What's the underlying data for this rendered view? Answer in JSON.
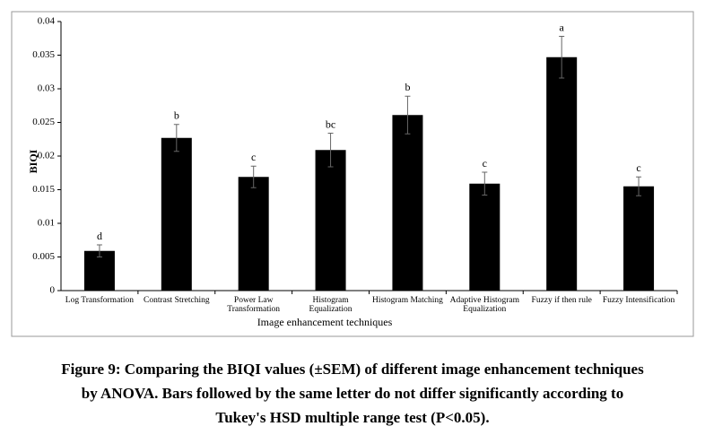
{
  "chart_data": {
    "type": "bar",
    "y_label": "BIQI",
    "x_label": "Image enhancement techniques",
    "categories": [
      "Log Transformation",
      "Contrast Stretching",
      "Power Law Transformation",
      "Histogram Equalization",
      "Histogram Matching",
      "Adaptive Histogram Equalization",
      "Fuzzy if then rule",
      "Fuzzy Intensification"
    ],
    "series": [
      {
        "color": "#000000",
        "values": [
          0.0059,
          0.0227,
          0.0169,
          0.0209,
          0.0261,
          0.0159,
          0.0347,
          0.0155
        ],
        "errors": [
          0.0009,
          0.002,
          0.0016,
          0.0025,
          0.0028,
          0.0017,
          0.0031,
          0.0014
        ],
        "letters": [
          "d",
          "b",
          "c",
          "bc",
          "b",
          "c",
          "a",
          "c"
        ]
      }
    ],
    "ylim": [
      0,
      0.04
    ],
    "yticks": [
      0,
      0.005,
      0.01,
      0.015,
      0.02,
      0.025,
      0.03,
      0.035,
      0.04
    ],
    "grid": false,
    "caption": [
      "Figure 9: Comparing the BIQI values (±SEM) of different image enhancement techniques",
      "by ANOVA. Bars followed by the same letter do not differ significantly according to",
      "Tukey's HSD multiple range test (P<0.05)."
    ]
  }
}
